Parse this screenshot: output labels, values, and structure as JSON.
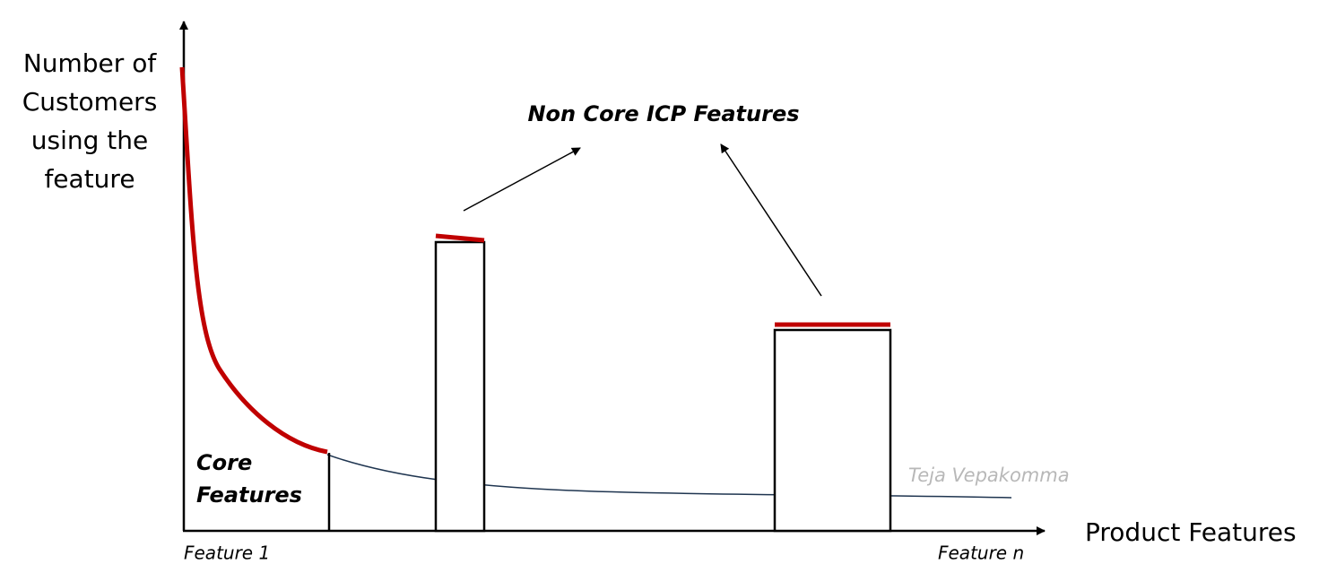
{
  "y_axis_label": {
    "lines": [
      "Number of",
      "Customers",
      "using the",
      "feature"
    ]
  },
  "x_axis_label": "Product Features",
  "x_start_label": "Feature 1",
  "x_end_label": "Feature n",
  "annotation": "Non Core ICP Features",
  "core_label": {
    "lines": [
      "Core",
      "Features"
    ]
  },
  "watermark": "Teja Vepakomma"
}
